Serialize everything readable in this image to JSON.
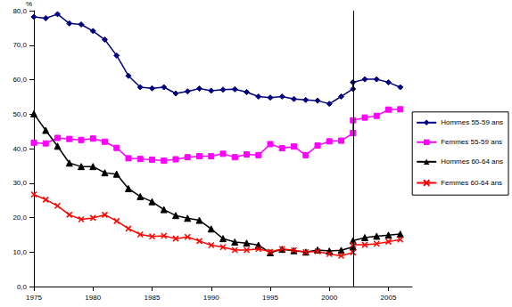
{
  "chart_data": {
    "type": "line",
    "ylabel": "%",
    "x": [
      1975,
      1976,
      1977,
      1978,
      1979,
      1980,
      1981,
      1982,
      1983,
      1984,
      1985,
      1986,
      1987,
      1988,
      1989,
      1990,
      1991,
      1992,
      1993,
      1994,
      1995,
      1996,
      1997,
      1998,
      1999,
      2000,
      2001,
      2002,
      2002,
      2003,
      2004,
      2005,
      2006
    ],
    "series": [
      {
        "name": "Hommes 55-59 ans",
        "color": "#000080",
        "marker": "diamond",
        "values": [
          78.2,
          77.8,
          79.0,
          76.3,
          76.0,
          74.1,
          71.6,
          67.0,
          61.1,
          57.8,
          57.5,
          57.8,
          56.0,
          56.6,
          57.4,
          56.8,
          57.1,
          57.2,
          56.4,
          55.1,
          54.8,
          55.1,
          54.4,
          54.1,
          53.9,
          53.0,
          55.1,
          57.3,
          59.2,
          60.1,
          60.1,
          59.2,
          57.8
        ]
      },
      {
        "name": "Femmes 55-59 ans",
        "color": "#FF00FF",
        "marker": "square",
        "values": [
          41.7,
          41.5,
          43.1,
          42.8,
          42.5,
          42.9,
          42.0,
          40.2,
          37.2,
          37.0,
          36.8,
          36.5,
          36.9,
          37.5,
          37.8,
          37.8,
          38.5,
          37.5,
          38.3,
          38.1,
          41.3,
          40.1,
          40.6,
          38.1,
          40.9,
          42.1,
          42.3,
          44.5,
          48.2,
          49.0,
          49.5,
          51.3,
          51.4
        ]
      },
      {
        "name": "Hommes 60-64 ans",
        "color": "#000000",
        "marker": "triangle",
        "values": [
          50.1,
          45.3,
          40.7,
          35.8,
          34.8,
          34.8,
          33.0,
          32.6,
          28.4,
          26.1,
          24.6,
          22.3,
          20.6,
          19.8,
          19.2,
          16.7,
          13.9,
          12.9,
          12.6,
          12.0,
          9.8,
          10.8,
          10.4,
          10.0,
          10.6,
          10.3,
          10.5,
          11.5,
          13.3,
          14.2,
          14.6,
          14.9,
          15.2
        ]
      },
      {
        "name": "Femmes 60-64 ans",
        "color": "#FF0000",
        "marker": "x",
        "values": [
          26.7,
          25.2,
          23.4,
          20.8,
          19.5,
          19.9,
          20.8,
          19.0,
          16.8,
          15.1,
          14.5,
          14.7,
          13.9,
          14.4,
          13.2,
          12.0,
          11.4,
          10.6,
          10.6,
          10.9,
          10.1,
          10.9,
          10.5,
          10.0,
          10.2,
          9.4,
          8.9,
          9.9,
          12.1,
          12.1,
          12.4,
          13.0,
          13.6
        ]
      }
    ],
    "vline": 2002,
    "xlim": [
      1975,
      2007
    ],
    "xticks": [
      1975,
      1980,
      1985,
      1990,
      1995,
      2000,
      2005
    ],
    "ylim": [
      0,
      80
    ],
    "yticks": [
      {
        "value": 0,
        "label": "0,0"
      },
      {
        "value": 10,
        "label": "10,0"
      },
      {
        "value": 20,
        "label": "20,0"
      },
      {
        "value": 30,
        "label": "30,0"
      },
      {
        "value": 40,
        "label": "40,0"
      },
      {
        "value": 50,
        "label": "50,0"
      },
      {
        "value": 60,
        "label": "60,0"
      },
      {
        "value": 70,
        "label": "70,0"
      },
      {
        "value": 80,
        "label": "80,0"
      }
    ],
    "grid": false,
    "legend": "right"
  }
}
